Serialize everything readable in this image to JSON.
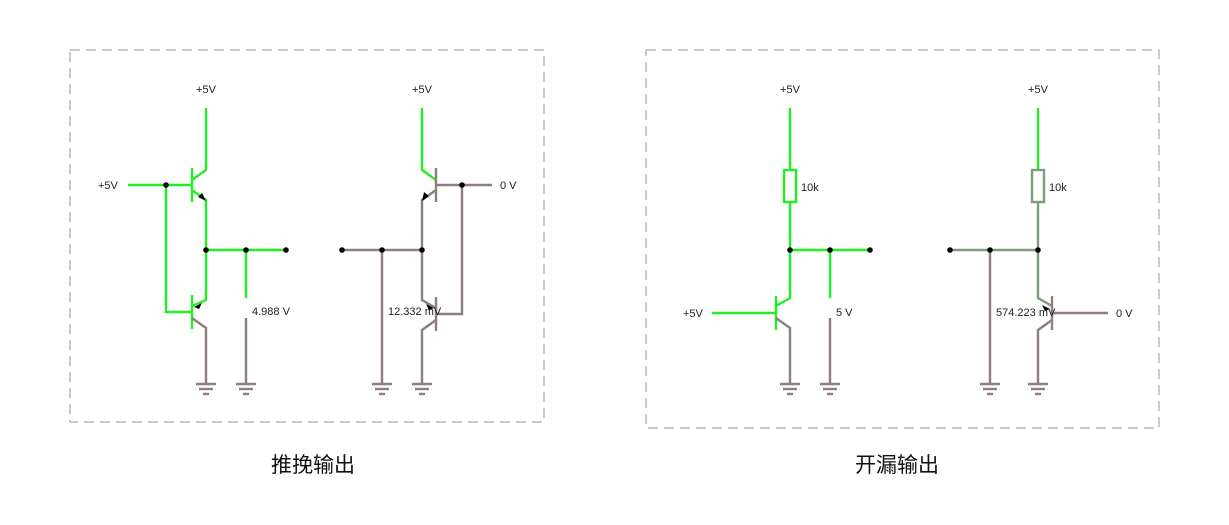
{
  "push_pull": {
    "caption": "推挽输出",
    "left_stage": {
      "supply_label": "+5V",
      "input_label": "+5V",
      "output_voltage": "4.988 V"
    },
    "right_stage": {
      "supply_label": "+5V",
      "input_label": "0 V",
      "output_voltage": "12.332 mV"
    }
  },
  "open_drain": {
    "caption": "开漏输出",
    "left_stage": {
      "supply_label": "+5V",
      "resistor_label": "10k",
      "input_label": "+5V",
      "output_voltage": "5 V"
    },
    "right_stage": {
      "supply_label": "+5V",
      "resistor_label": "10k",
      "input_label": "0 V",
      "output_voltage": "574.223 mV"
    }
  },
  "colors": {
    "active_wire": "#22ee22",
    "inactive_wire": "#8e7e7e",
    "resistor_inactive": "#7f9a7f",
    "frame": "#b9b9b9"
  }
}
